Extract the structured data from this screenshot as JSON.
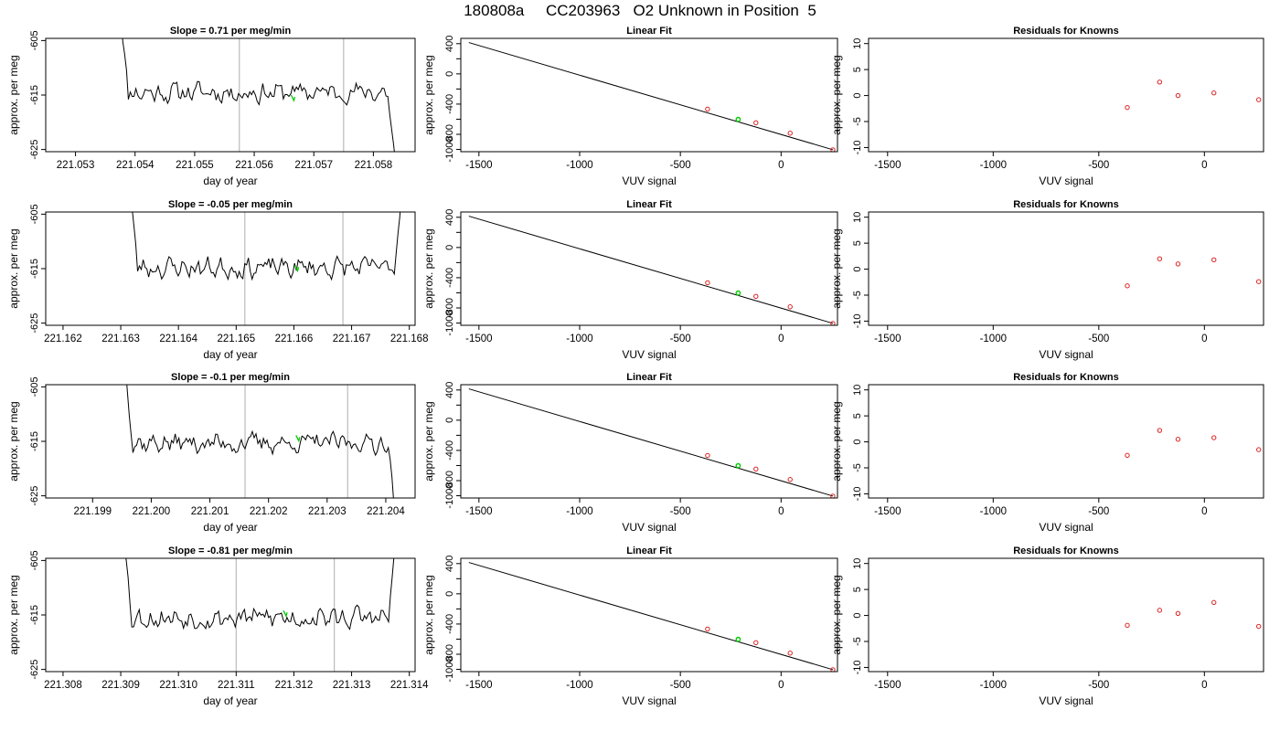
{
  "figure": {
    "title": "180808a     CC203963   O2 Unknown in Position  5",
    "colors": {
      "trace": "#000000",
      "unknown": "#00cc00",
      "knowns": "#dd2222",
      "vline": "#bbbbbb",
      "fitline": "#000000"
    }
  },
  "chart_data": [
    {
      "type": "line",
      "title": "Slope =  0.71  per meg/min",
      "xlabel": "day of year",
      "ylabel": "approx. per meg",
      "xlim": [
        221.0525,
        221.0587
      ],
      "ylim": [
        -625.4,
        -604.6
      ],
      "xticks": [
        "221.053",
        "221.054",
        "221.055",
        "221.056",
        "221.057",
        "221.058"
      ],
      "yticks": [
        "-605",
        "-615",
        "-625"
      ],
      "vlines": [
        221.05575,
        221.0575
      ],
      "trace_start": 221.0537,
      "trace_end": 221.0584,
      "level": -614.5,
      "amplitude": 2.6,
      "unknown_marker": [
        221.05665,
        -615.5
      ],
      "seed": 11
    },
    {
      "type": "scatter",
      "title": "Linear Fit",
      "xlabel": "VUV signal",
      "ylabel": "approx. per meg",
      "xlim": [
        -1590,
        280
      ],
      "ylim": [
        -1030,
        470
      ],
      "xticks": [
        "-1500",
        "-1000",
        "-500",
        "0"
      ],
      "yticks": [
        "-1000",
        "-800",
        "-400",
        "0",
        "400"
      ],
      "fit_line": [
        [
          -1550,
          415
        ],
        [
          258,
          -1005
        ]
      ],
      "knowns": [
        [
          -365,
          -467
        ],
        [
          -125,
          -647
        ],
        [
          45,
          -785
        ],
        [
          257,
          -1005
        ]
      ],
      "unknown": [
        -213,
        -603
      ]
    },
    {
      "type": "scatter",
      "title": "Residuals for Knowns",
      "xlabel": "VUV signal",
      "ylabel": "approx. per meg",
      "xlim": [
        -1590,
        280
      ],
      "ylim": [
        -10.8,
        11
      ],
      "xticks": [
        "-1500",
        "-1000",
        "-500",
        "0"
      ],
      "yticks": [
        "-10",
        "-5",
        "0",
        "5",
        "10"
      ],
      "points": [
        [
          -365,
          -2.3
        ],
        [
          -212,
          2.6
        ],
        [
          -125,
          0.0
        ],
        [
          45,
          0.5
        ],
        [
          257,
          -0.8
        ]
      ]
    },
    {
      "type": "line",
      "title": "Slope =  -0.05  per meg/min",
      "xlabel": "day of year",
      "ylabel": "approx. per meg",
      "xlim": [
        221.1617,
        221.1681
      ],
      "ylim": [
        -625.4,
        -604.6
      ],
      "xticks": [
        "221.162",
        "221.163",
        "221.164",
        "221.165",
        "221.166",
        "221.167",
        "221.168"
      ],
      "yticks": [
        "-605",
        "-615",
        "-625"
      ],
      "vlines": [
        221.16515,
        221.16685
      ],
      "trace_start": 221.1631,
      "trace_end": 221.1679,
      "level": -614.8,
      "amplitude": 2.6,
      "unknown_marker": [
        221.16605,
        -614.9
      ],
      "seed": 23
    },
    {
      "type": "scatter",
      "title": "Linear Fit",
      "xlabel": "VUV signal",
      "ylabel": "approx. per meg",
      "xlim": [
        -1590,
        280
      ],
      "ylim": [
        -1030,
        470
      ],
      "xticks": [
        "-1500",
        "-1000",
        "-500",
        "0"
      ],
      "yticks": [
        "-1000",
        "-800",
        "-400",
        "0",
        "400"
      ],
      "fit_line": [
        [
          -1550,
          415
        ],
        [
          258,
          -1005
        ]
      ],
      "knowns": [
        [
          -365,
          -467
        ],
        [
          -125,
          -647
        ],
        [
          45,
          -785
        ],
        [
          257,
          -1005
        ]
      ],
      "unknown": [
        -213,
        -603
      ]
    },
    {
      "type": "scatter",
      "title": "Residuals for Knowns",
      "xlabel": "VUV signal",
      "ylabel": "approx. per meg",
      "xlim": [
        -1590,
        280
      ],
      "ylim": [
        -10.8,
        11
      ],
      "xticks": [
        "-1500",
        "-1000",
        "-500",
        "0"
      ],
      "yticks": [
        "-10",
        "-5",
        "0",
        "5",
        "10"
      ],
      "points": [
        [
          -365,
          -3.2
        ],
        [
          -212,
          2.0
        ],
        [
          -125,
          1.0
        ],
        [
          45,
          1.8
        ],
        [
          257,
          -2.4
        ]
      ]
    },
    {
      "type": "line",
      "title": "Slope =  -0.1  per meg/min",
      "xlabel": "day of year",
      "ylabel": "approx. per meg",
      "xlim": [
        221.1982,
        221.2045
      ],
      "ylim": [
        -625.4,
        -604.6
      ],
      "xticks": [
        "221.199",
        "221.200",
        "221.201",
        "221.202",
        "221.203",
        "221.204"
      ],
      "yticks": [
        "-605",
        "-615",
        "-625"
      ],
      "vlines": [
        221.2016,
        221.20335
      ],
      "trace_start": 221.1995,
      "trace_end": 221.2042,
      "level": -615.3,
      "amplitude": 2.5,
      "unknown_marker": [
        221.2025,
        -614.4
      ],
      "seed": 37
    },
    {
      "type": "scatter",
      "title": "Linear Fit",
      "xlabel": "VUV signal",
      "ylabel": "approx. per meg",
      "xlim": [
        -1590,
        280
      ],
      "ylim": [
        -1030,
        470
      ],
      "xticks": [
        "-1500",
        "-1000",
        "-500",
        "0"
      ],
      "yticks": [
        "-1000",
        "-800",
        "-400",
        "0",
        "400"
      ],
      "fit_line": [
        [
          -1550,
          415
        ],
        [
          258,
          -1005
        ]
      ],
      "knowns": [
        [
          -365,
          -467
        ],
        [
          -125,
          -647
        ],
        [
          45,
          -785
        ],
        [
          257,
          -1005
        ]
      ],
      "unknown": [
        -213,
        -603
      ]
    },
    {
      "type": "scatter",
      "title": "Residuals for Knowns",
      "xlabel": "VUV signal",
      "ylabel": "approx. per meg",
      "xlim": [
        -1590,
        280
      ],
      "ylim": [
        -10.8,
        11
      ],
      "points": [
        [
          -365,
          -2.6
        ],
        [
          -212,
          2.2
        ],
        [
          -125,
          0.5
        ],
        [
          45,
          0.8
        ],
        [
          257,
          -1.5
        ]
      ],
      "xticks": [
        "-1500",
        "-1000",
        "-500",
        "0"
      ],
      "yticks": [
        "-10",
        "-5",
        "0",
        "5",
        "10"
      ]
    },
    {
      "type": "line",
      "title": "Slope =  -0.81  per meg/min",
      "xlabel": "day of year",
      "ylabel": "approx. per meg",
      "xlim": [
        221.3077,
        221.3141
      ],
      "ylim": [
        -625.4,
        -604.6
      ],
      "xticks": [
        "221.308",
        "221.309",
        "221.310",
        "221.311",
        "221.312",
        "221.313",
        "221.314"
      ],
      "yticks": [
        "-605",
        "-615",
        "-625"
      ],
      "vlines": [
        221.311,
        221.3127
      ],
      "trace_start": 221.309,
      "trace_end": 221.3138,
      "level": -615.5,
      "amplitude": 2.7,
      "unknown_marker": [
        221.31185,
        -614.7
      ],
      "seed": 53
    },
    {
      "type": "scatter",
      "title": "Linear Fit",
      "xlabel": "VUV signal",
      "ylabel": "approx. per meg",
      "xlim": [
        -1590,
        280
      ],
      "ylim": [
        -1030,
        470
      ],
      "xticks": [
        "-1500",
        "-1000",
        "-500",
        "0"
      ],
      "yticks": [
        "-1000",
        "-800",
        "-400",
        "0",
        "400"
      ],
      "fit_line": [
        [
          -1550,
          415
        ],
        [
          258,
          -1005
        ]
      ],
      "knowns": [
        [
          -365,
          -467
        ],
        [
          -125,
          -647
        ],
        [
          45,
          -785
        ],
        [
          257,
          -1005
        ]
      ],
      "unknown": [
        -213,
        -603
      ]
    },
    {
      "type": "scatter",
      "title": "Residuals for Knowns",
      "xlabel": "VUV signal",
      "ylabel": "approx. per meg",
      "xlim": [
        -1590,
        280
      ],
      "ylim": [
        -10.8,
        11
      ],
      "xticks": [
        "-1500",
        "-1000",
        "-500",
        "0"
      ],
      "yticks": [
        "-10",
        "-5",
        "0",
        "5",
        "10"
      ],
      "points": [
        [
          -365,
          -1.9
        ],
        [
          -212,
          1.0
        ],
        [
          -125,
          0.4
        ],
        [
          45,
          2.5
        ],
        [
          257,
          -2.1
        ]
      ]
    }
  ]
}
